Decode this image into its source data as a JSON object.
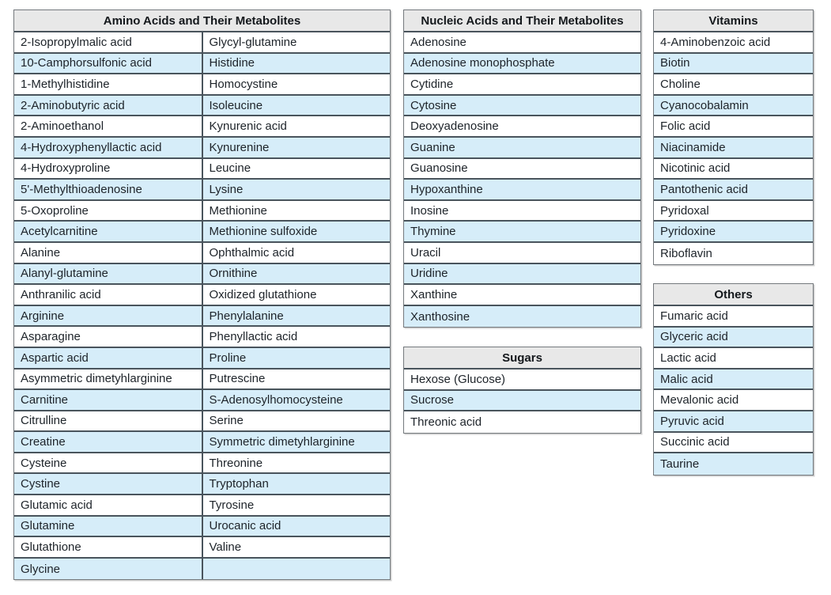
{
  "figure": {
    "description_background": "#ffffff"
  },
  "colors": {
    "header_bg": "#e8e8e8",
    "stripe_bg": "#d6edf9",
    "row_bg": "#ffffff",
    "border_inner": "#49545c",
    "border_outer": "#74797d",
    "text": "#1d2329"
  },
  "tables": [
    {
      "title": "Amino Acids and Their Metabolites",
      "columns": 2,
      "rows": [
        [
          "2-Isopropylmalic acid",
          "Glycyl-glutamine"
        ],
        [
          "10-Camphorsulfonic acid",
          "Histidine"
        ],
        [
          "1-Methylhistidine",
          "Homocystine"
        ],
        [
          "2-Aminobutyric acid",
          "Isoleucine"
        ],
        [
          "2-Aminoethanol",
          "Kynurenic acid"
        ],
        [
          "4-Hydroxyphenyllactic acid",
          "Kynurenine"
        ],
        [
          "4-Hydroxyproline",
          "Leucine"
        ],
        [
          "5'-Methylthioadenosine",
          "Lysine"
        ],
        [
          "5-Oxoproline",
          "Methionine"
        ],
        [
          "Acetylcarnitine",
          "Methionine sulfoxide"
        ],
        [
          "Alanine",
          "Ophthalmic acid"
        ],
        [
          "Alanyl-glutamine",
          "Ornithine"
        ],
        [
          "Anthranilic acid",
          "Oxidized glutathione"
        ],
        [
          "Arginine",
          "Phenylalanine"
        ],
        [
          "Asparagine",
          "Phenyllactic acid"
        ],
        [
          "Aspartic acid",
          "Proline"
        ],
        [
          "Asymmetric dimetyhlarginine",
          "Putrescine"
        ],
        [
          "Carnitine",
          "S-Adenosylhomocysteine"
        ],
        [
          "Citrulline",
          "Serine"
        ],
        [
          "Creatine",
          "Symmetric dimetyhlarginine"
        ],
        [
          "Cysteine",
          "Threonine"
        ],
        [
          "Cystine",
          "Tryptophan"
        ],
        [
          "Glutamic acid",
          "Tyrosine"
        ],
        [
          "Glutamine",
          "Urocanic acid"
        ],
        [
          "Glutathione",
          "Valine"
        ],
        [
          "Glycine",
          ""
        ]
      ]
    },
    {
      "title": "Nucleic Acids and Their Metabolites",
      "columns": 1,
      "rows": [
        [
          "Adenosine"
        ],
        [
          "Adenosine monophosphate"
        ],
        [
          "Cytidine"
        ],
        [
          "Cytosine"
        ],
        [
          "Deoxyadenosine"
        ],
        [
          "Guanine"
        ],
        [
          "Guanosine"
        ],
        [
          "Hypoxanthine"
        ],
        [
          "Inosine"
        ],
        [
          "Thymine"
        ],
        [
          "Uracil"
        ],
        [
          "Uridine"
        ],
        [
          "Xanthine"
        ],
        [
          "Xanthosine"
        ]
      ]
    },
    {
      "title": "Sugars",
      "columns": 1,
      "rows": [
        [
          "Hexose (Glucose)"
        ],
        [
          "Sucrose"
        ],
        [
          "Threonic acid"
        ]
      ]
    },
    {
      "title": "Vitamins",
      "columns": 1,
      "rows": [
        [
          "4-Aminobenzoic acid"
        ],
        [
          "Biotin"
        ],
        [
          "Choline"
        ],
        [
          "Cyanocobalamin"
        ],
        [
          "Folic acid"
        ],
        [
          "Niacinamide"
        ],
        [
          "Nicotinic acid"
        ],
        [
          "Pantothenic acid"
        ],
        [
          "Pyridoxal"
        ],
        [
          "Pyridoxine"
        ],
        [
          "Riboflavin"
        ]
      ]
    },
    {
      "title": "Others",
      "columns": 1,
      "rows": [
        [
          "Fumaric acid"
        ],
        [
          "Glyceric acid"
        ],
        [
          "Lactic acid"
        ],
        [
          "Malic acid"
        ],
        [
          "Mevalonic acid"
        ],
        [
          "Pyruvic acid"
        ],
        [
          "Succinic acid"
        ],
        [
          "Taurine"
        ]
      ]
    }
  ]
}
